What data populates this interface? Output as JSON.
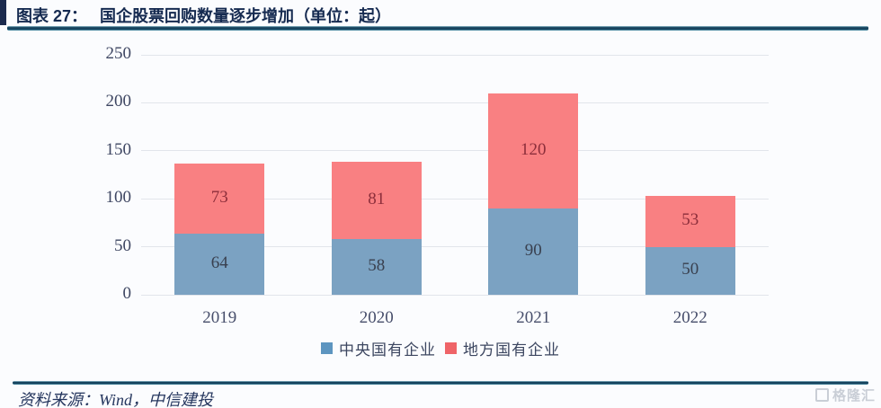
{
  "header": {
    "figure_label": "图表 27：",
    "title": "国企股票回购数量逐步增加（单位：起）"
  },
  "chart_data": {
    "type": "bar",
    "stacked": true,
    "title": "国企股票回购数量逐步增加（单位：起）",
    "xlabel": "",
    "ylabel": "",
    "categories": [
      "2019",
      "2020",
      "2021",
      "2022"
    ],
    "series": [
      {
        "name": "中央国有企业",
        "values": [
          64,
          58,
          90,
          50
        ],
        "color": "#7ba2c2",
        "legend_color": "#5d95c0",
        "label_color": "#39404f"
      },
      {
        "name": "地方国有企业",
        "values": [
          73,
          81,
          120,
          53
        ],
        "color": "#f98082",
        "legend_color": "#ef6468",
        "label_color": "#8c2e3b"
      }
    ],
    "totals": [
      137,
      139,
      210,
      103
    ],
    "ylim": [
      0,
      250
    ],
    "yticks": [
      0,
      50,
      100,
      150,
      200,
      250
    ],
    "grid": true,
    "legend_position": "bottom"
  },
  "footer": {
    "source": "资料来源：Wind，中信建投",
    "watermark": "格隆汇"
  },
  "colors": {
    "title_text": "#152a50",
    "accent_bar": "#1c2b4e",
    "rule": "#16435e",
    "gridline": "#e2e5eb",
    "axis_text": "#3e4662",
    "background": "#fbfcfe"
  }
}
